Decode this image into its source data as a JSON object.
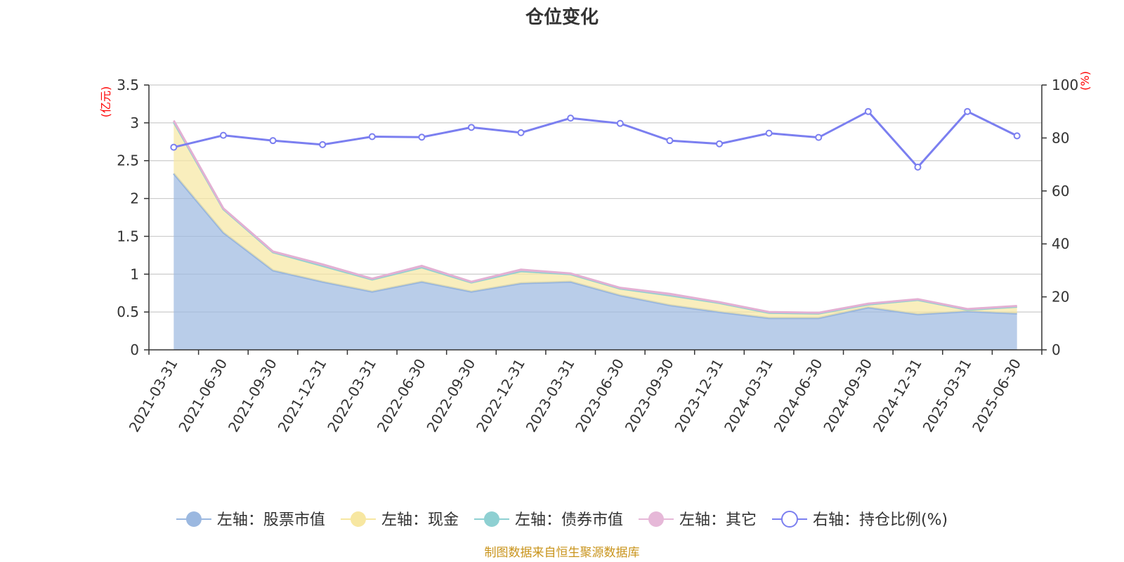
{
  "chart_data": {
    "type": "area",
    "title": "仓位变化",
    "left_axis_unit": "(亿元)",
    "right_axis_unit": "(%)",
    "categories": [
      "2021-03-31",
      "2021-06-30",
      "2021-09-30",
      "2021-12-31",
      "2022-03-31",
      "2022-06-30",
      "2022-09-30",
      "2022-12-31",
      "2023-03-31",
      "2023-06-30",
      "2023-09-30",
      "2023-12-31",
      "2024-03-31",
      "2024-06-30",
      "2024-09-30",
      "2024-12-31",
      "2025-03-31",
      "2025-06-30"
    ],
    "left_axis": {
      "ylim": [
        0,
        3.5
      ],
      "ticks": [
        "0",
        "0.5",
        "1",
        "1.5",
        "2",
        "2.5",
        "3",
        "3.5"
      ]
    },
    "right_axis": {
      "ylim": [
        0,
        100
      ],
      "ticks": [
        "0",
        "20",
        "40",
        "60",
        "80",
        "100"
      ]
    },
    "series": [
      {
        "name": "左轴：股票市值",
        "axis": "left",
        "kind": "stacked-area",
        "color": "#9bb8e0",
        "values": [
          2.33,
          1.55,
          1.05,
          0.9,
          0.77,
          0.9,
          0.77,
          0.88,
          0.9,
          0.72,
          0.59,
          0.5,
          0.42,
          0.42,
          0.56,
          0.47,
          0.51,
          0.48
        ]
      },
      {
        "name": "左轴：现金",
        "axis": "left",
        "kind": "stacked-area",
        "color": "#f7e7a1",
        "values": [
          0.68,
          0.31,
          0.24,
          0.21,
          0.16,
          0.19,
          0.12,
          0.16,
          0.1,
          0.09,
          0.13,
          0.12,
          0.07,
          0.06,
          0.04,
          0.19,
          0.02,
          0.09
        ]
      },
      {
        "name": "左轴：债券市值",
        "axis": "left",
        "kind": "stacked-area",
        "color": "#8ed0d2",
        "values": [
          0,
          0,
          0,
          0,
          0,
          0,
          0,
          0,
          0,
          0,
          0,
          0,
          0,
          0,
          0,
          0,
          0,
          0
        ]
      },
      {
        "name": "左轴：其它",
        "axis": "left",
        "kind": "stacked-area",
        "color": "#e6b8d8",
        "values": [
          0.02,
          0.01,
          0.01,
          0.02,
          0.01,
          0.02,
          0.01,
          0.02,
          0.01,
          0.01,
          0.02,
          0.01,
          0.01,
          0.01,
          0.01,
          0.01,
          0.01,
          0.01
        ]
      },
      {
        "name": "右轴：持仓比例(%)",
        "axis": "right",
        "kind": "line",
        "color": "#7b7ff0",
        "values": [
          76.5,
          81.0,
          79.0,
          77.5,
          80.5,
          80.3,
          84.0,
          82.0,
          87.5,
          85.5,
          79.0,
          77.8,
          81.8,
          80.2,
          90.0,
          69.0,
          90.0,
          80.8
        ]
      }
    ],
    "grid": true,
    "legend_position": "bottom",
    "source_note": "制图数据来自恒生聚源数据库"
  }
}
